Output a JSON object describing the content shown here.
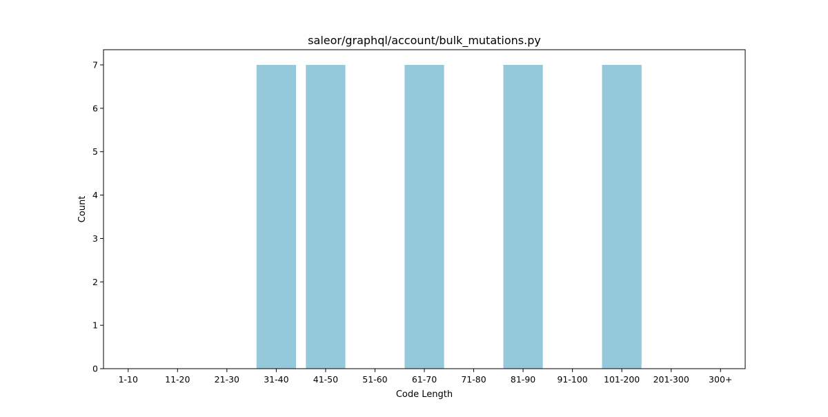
{
  "chart_data": {
    "type": "bar",
    "title": "saleor/graphql/account/bulk_mutations.py",
    "xlabel": "Code Length",
    "ylabel": "Count",
    "categories": [
      "1-10",
      "11-20",
      "21-30",
      "31-40",
      "41-50",
      "51-60",
      "61-70",
      "71-80",
      "81-90",
      "91-100",
      "101-200",
      "201-300",
      "300+"
    ],
    "values": [
      0,
      0,
      0,
      7,
      7,
      0,
      7,
      0,
      7,
      0,
      7,
      0,
      0
    ],
    "yticks": [
      0,
      1,
      2,
      3,
      4,
      5,
      6,
      7
    ],
    "ylim": [
      0,
      7.35
    ],
    "bar_color": "#96c8dc",
    "grid": false,
    "legend": "none"
  }
}
